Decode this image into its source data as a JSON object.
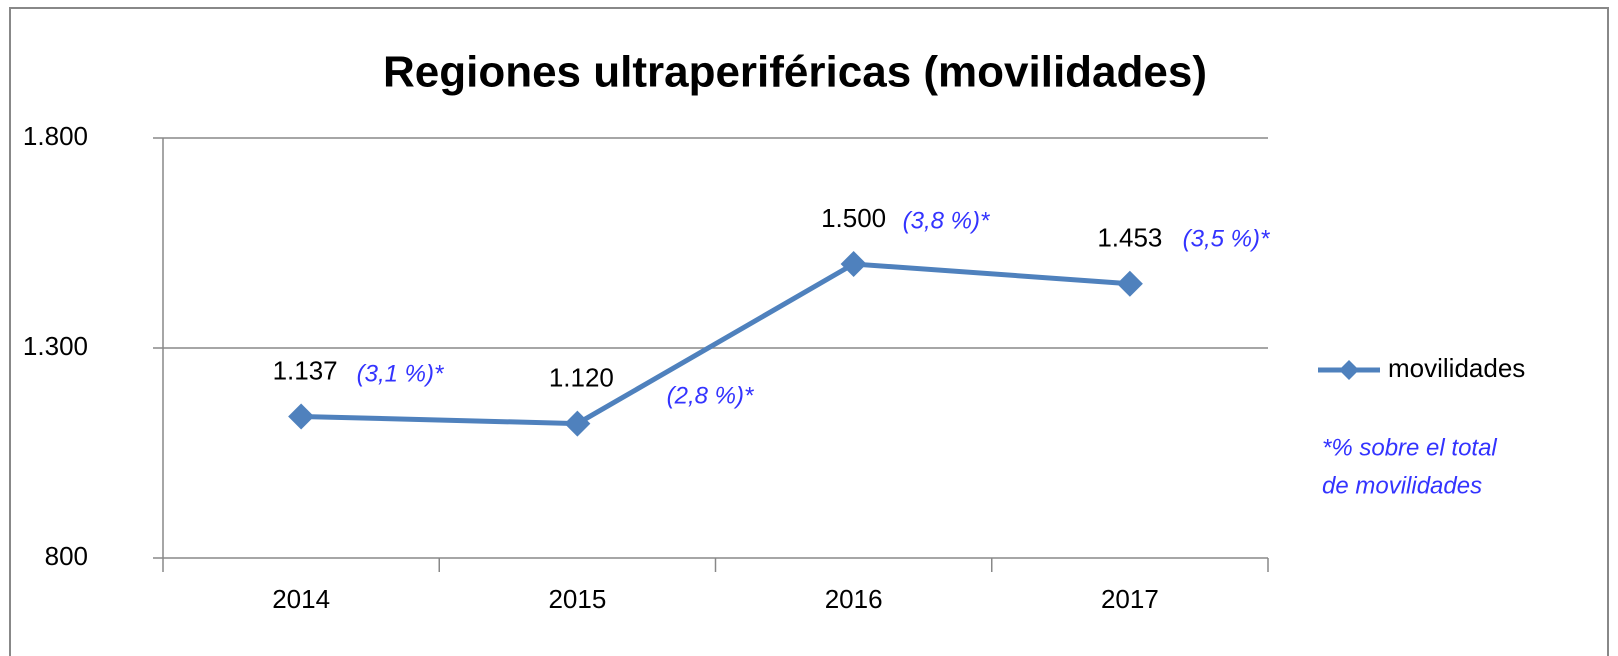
{
  "chart_data": {
    "type": "line",
    "title": "Regiones ultraperiféricas (movilidades)",
    "categories": [
      "2014",
      "2015",
      "2016",
      "2017"
    ],
    "series": [
      {
        "name": "movilidades",
        "color": "#4f81bd",
        "values": [
          1137,
          1120,
          1500,
          1453
        ],
        "value_labels": [
          "1.137",
          "1.120",
          "1.500",
          "1.453"
        ]
      }
    ],
    "ylim": [
      800,
      1800
    ],
    "yticks": [
      800,
      {
        "value": 1300,
        "label": "1.300"
      },
      {
        "value": 1800,
        "label": "1.800"
      }
    ],
    "grid": true,
    "legend": "right",
    "annotations": [
      "(3,1 %)*",
      "(2,8 %)*",
      "(3,8 %)*",
      "(3,5 %)*"
    ],
    "note": [
      "*% sobre el total",
      "de movilidades"
    ]
  }
}
